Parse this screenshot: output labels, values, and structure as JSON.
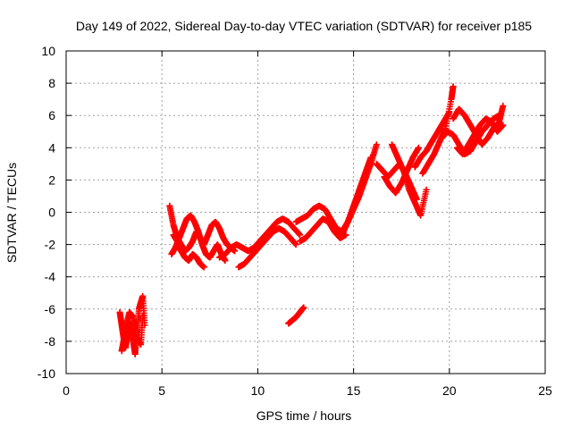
{
  "chart_data": {
    "type": "scatter",
    "title": "Day 149 of 2022, Sidereal Day-to-day VTEC variation (SDTVAR) for receiver p185",
    "xlabel": "GPS time / hours",
    "ylabel": "SDTVAR / TECUs",
    "xlim": [
      0,
      25
    ],
    "ylim": [
      -10,
      10
    ],
    "xticks": [
      0,
      5,
      10,
      15,
      20,
      25
    ],
    "yticks": [
      -10,
      -8,
      -6,
      -4,
      -2,
      0,
      2,
      4,
      6,
      8,
      10
    ],
    "grid": true,
    "marker": "+",
    "color": "#ff0000",
    "series": [
      {
        "x": [
          2.8,
          2.9,
          3.0,
          3.1,
          3.2,
          3.3,
          3.4,
          3.5,
          3.6,
          3.7,
          3.8,
          3.9,
          4.0,
          4.1
        ],
        "y": [
          -6.2,
          -7.0,
          -7.8,
          -8.4,
          -7.6,
          -6.8,
          -7.2,
          -8.0,
          -8.8,
          -7.5,
          -6.0,
          -5.6,
          -5.2,
          -7.0
        ]
      },
      {
        "x": [
          2.9,
          3.0,
          3.1,
          3.3,
          3.5,
          3.7,
          3.9,
          4.0
        ],
        "y": [
          -8.6,
          -8.0,
          -7.2,
          -6.2,
          -6.5,
          -7.8,
          -8.2,
          -6.4
        ]
      },
      {
        "x": [
          5.4,
          5.6,
          5.8,
          6.0,
          6.2,
          6.4,
          6.6,
          6.8,
          7.0,
          7.2,
          7.4,
          7.6,
          7.8,
          8.0,
          8.2,
          8.4,
          8.6,
          8.8
        ],
        "y": [
          0.4,
          -0.8,
          -1.6,
          -2.0,
          -2.4,
          -2.2,
          -1.8,
          -1.2,
          -1.6,
          -2.0,
          -1.4,
          -0.8,
          -0.6,
          -1.0,
          -1.6,
          -2.0,
          -2.2,
          -2.4
        ]
      },
      {
        "x": [
          5.5,
          5.7,
          5.9,
          6.1,
          6.3,
          6.5,
          6.7,
          6.9,
          7.1,
          7.3,
          7.5,
          7.7,
          7.9,
          8.1,
          8.3
        ],
        "y": [
          -2.6,
          -2.2,
          -1.6,
          -1.0,
          -0.4,
          -0.2,
          -0.6,
          -1.2,
          -2.0,
          -2.6,
          -2.8,
          -2.4,
          -2.0,
          -2.6,
          -3.0
        ]
      },
      {
        "x": [
          5.6,
          5.8,
          6.0,
          6.2,
          6.4,
          6.6,
          6.8,
          7.0,
          7.2
        ],
        "y": [
          -1.4,
          -1.8,
          -2.4,
          -2.8,
          -3.0,
          -2.6,
          -2.8,
          -3.2,
          -3.4
        ]
      },
      {
        "x": [
          8.0,
          8.3,
          8.6,
          8.9,
          9.2,
          9.5,
          9.8,
          10.1,
          10.4,
          10.7,
          11.0,
          11.3,
          11.6,
          11.9,
          12.2
        ],
        "y": [
          -2.8,
          -2.6,
          -2.2,
          -2.0,
          -2.2,
          -2.4,
          -2.2,
          -1.8,
          -1.4,
          -1.0,
          -0.6,
          -0.4,
          -0.6,
          -1.0,
          -1.4
        ]
      },
      {
        "x": [
          9.0,
          9.3,
          9.6,
          9.9,
          10.2,
          10.5,
          10.8,
          11.1,
          11.4,
          11.7,
          12.0
        ],
        "y": [
          -3.4,
          -3.2,
          -2.8,
          -2.4,
          -2.0,
          -1.6,
          -1.2,
          -1.0,
          -1.2,
          -1.6,
          -2.0
        ]
      },
      {
        "x": [
          11.6,
          11.8,
          12.0,
          12.2,
          12.4
        ],
        "y": [
          -6.9,
          -6.7,
          -6.5,
          -6.2,
          -5.9
        ]
      },
      {
        "x": [
          12.0,
          12.3,
          12.6,
          12.9,
          13.2,
          13.5,
          13.8,
          14.1,
          14.4,
          14.7,
          15.0,
          15.3,
          15.6,
          15.9
        ],
        "y": [
          -0.6,
          -0.4,
          -0.2,
          0.2,
          0.4,
          0.2,
          -0.4,
          -1.0,
          -1.2,
          -0.6,
          0.4,
          1.4,
          2.4,
          3.4
        ]
      },
      {
        "x": [
          12.2,
          12.5,
          12.8,
          13.1,
          13.4,
          13.7,
          14.0,
          14.3,
          14.6
        ],
        "y": [
          -1.8,
          -1.6,
          -1.2,
          -0.8,
          -0.4,
          -0.6,
          -1.2,
          -1.6,
          -1.4
        ]
      },
      {
        "x": [
          14.4,
          14.7,
          15.0,
          15.3,
          15.6,
          15.9,
          16.2
        ],
        "y": [
          -1.4,
          -0.6,
          0.2,
          1.0,
          2.0,
          3.0,
          4.2
        ]
      },
      {
        "x": [
          16.2,
          16.5,
          16.8,
          17.1,
          17.4,
          17.7,
          18.0,
          18.3
        ],
        "y": [
          3.0,
          2.6,
          2.2,
          2.6,
          3.0,
          2.4,
          1.6,
          0.8
        ]
      },
      {
        "x": [
          16.6,
          16.9,
          17.2,
          17.5,
          17.8,
          18.1,
          18.4
        ],
        "y": [
          2.2,
          1.6,
          1.2,
          1.8,
          2.6,
          3.4,
          4.0
        ]
      },
      {
        "x": [
          17.0,
          17.3,
          17.6,
          17.9,
          18.2,
          18.5,
          18.8
        ],
        "y": [
          4.2,
          3.4,
          2.6,
          1.4,
          0.6,
          -0.2,
          1.4
        ]
      },
      {
        "x": [
          18.2,
          18.5,
          18.8,
          19.1,
          19.4,
          19.7,
          20.0
        ],
        "y": [
          2.8,
          3.4,
          3.8,
          4.4,
          5.0,
          5.6,
          6.2
        ]
      },
      {
        "x": [
          18.6,
          18.9,
          19.2,
          19.5,
          19.8,
          20.1,
          20.2
        ],
        "y": [
          2.4,
          3.0,
          3.6,
          4.4,
          5.2,
          7.0,
          7.8
        ]
      },
      {
        "x": [
          20.2,
          20.5,
          20.8,
          21.1,
          21.4,
          21.7,
          22.0,
          22.3,
          22.6,
          22.8
        ],
        "y": [
          5.8,
          6.4,
          6.0,
          5.4,
          4.8,
          4.2,
          4.6,
          5.2,
          5.6,
          6.6
        ]
      },
      {
        "x": [
          20.4,
          20.7,
          21.0,
          21.3,
          21.6,
          21.9,
          22.2,
          22.5,
          22.8
        ],
        "y": [
          4.0,
          3.6,
          4.2,
          4.8,
          5.4,
          5.8,
          5.6,
          5.0,
          5.4
        ]
      },
      {
        "x": [
          19.6,
          19.9,
          20.2,
          20.5,
          20.8,
          21.1,
          21.4,
          21.7,
          22.0,
          22.3,
          22.6
        ],
        "y": [
          4.6,
          5.0,
          4.8,
          4.2,
          3.6,
          3.8,
          4.4,
          5.0,
          5.4,
          5.8,
          6.0
        ]
      }
    ]
  }
}
